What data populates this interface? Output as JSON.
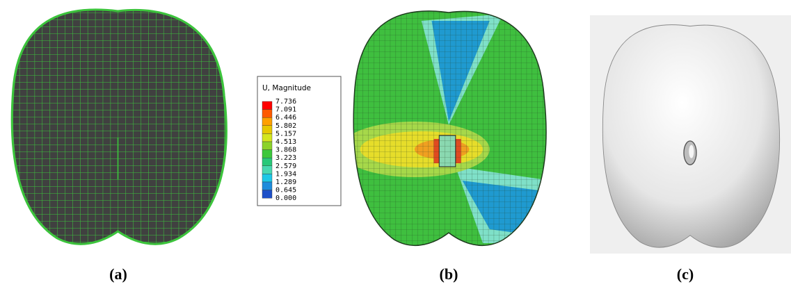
{
  "panels": [
    {
      "label": "(a)"
    },
    {
      "label": "(b)",
      "legend": {
        "title": "U, Magnitude",
        "values": [
          "7.736",
          "7.091",
          "6.446",
          "5.802",
          "5.157",
          "4.513",
          "3.868",
          "3.223",
          "2.579",
          "1.934",
          "1.289",
          "0.645",
          "0.000"
        ]
      }
    },
    {
      "label": "(c)"
    }
  ]
}
